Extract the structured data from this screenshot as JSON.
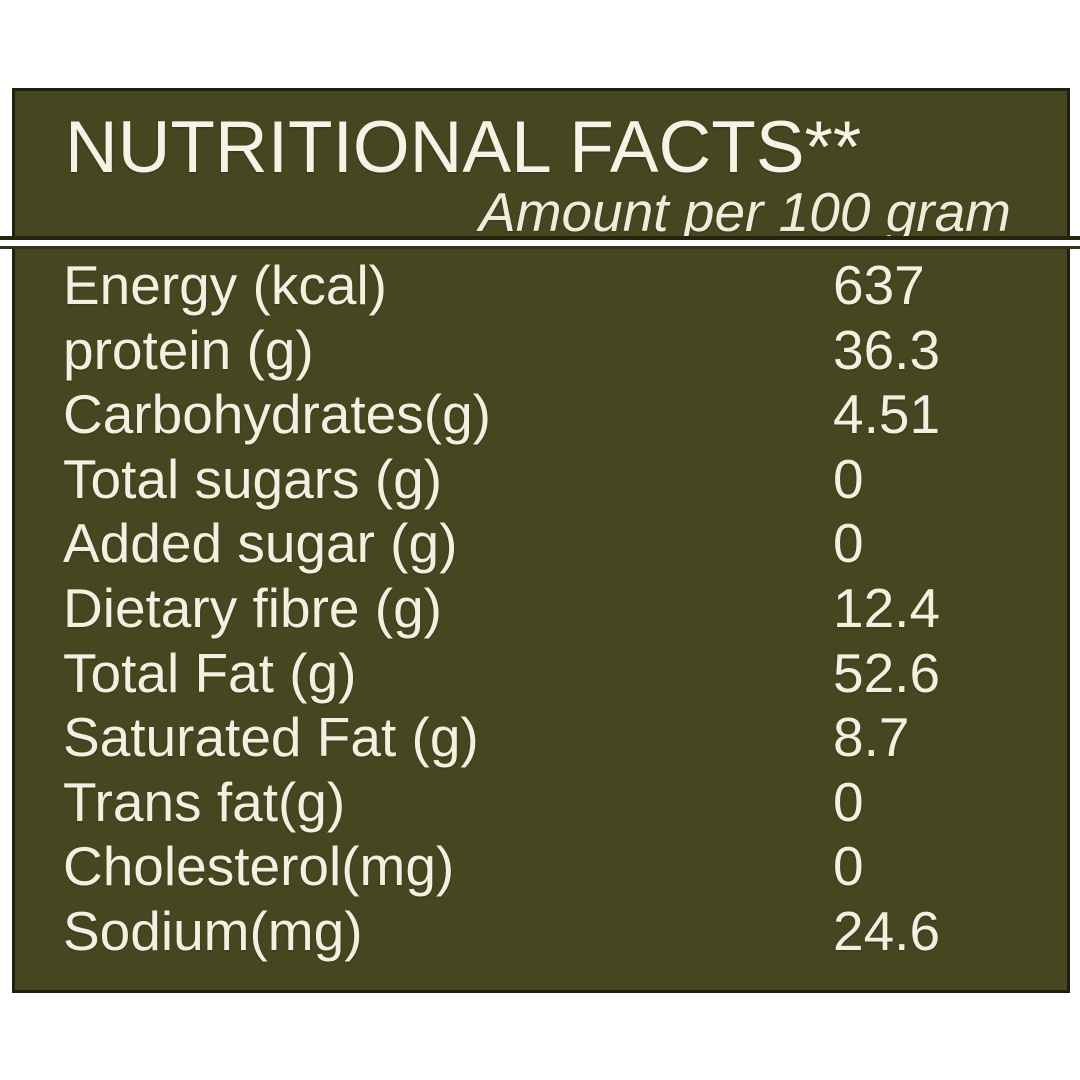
{
  "label": {
    "title": "NUTRITIONAL FACTS**",
    "subtitle": "Amount per 100 gram",
    "rows": [
      {
        "label": "Energy (kcal)",
        "value": "637"
      },
      {
        "label": "protein (g)",
        "value": "36.3"
      },
      {
        "label": "Carbohydrates(g)",
        "value": "4.51"
      },
      {
        "label": "Total sugars (g)",
        "value": "0"
      },
      {
        "label": "Added sugar (g)",
        "value": "0"
      },
      {
        "label": "Dietary fibre (g)",
        "value": "12.4"
      },
      {
        "label": "Total Fat (g)",
        "value": "52.6"
      },
      {
        "label": "Saturated Fat (g)",
        "value": "8.7"
      },
      {
        "label": "Trans fat(g)",
        "value": "0"
      },
      {
        "label": "Cholesterol(mg)",
        "value": "0"
      },
      {
        "label": "Sodium(mg)",
        "value": "24.6"
      }
    ],
    "colors": {
      "page_bg": "#ffffff",
      "panel_bg": "#464621",
      "panel_border": "#20200f",
      "text": "#f3f0e2",
      "separator": "#ffffff"
    }
  }
}
